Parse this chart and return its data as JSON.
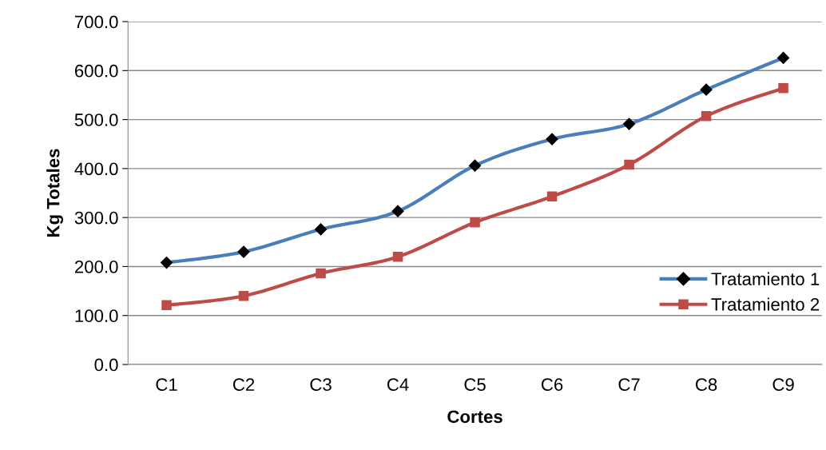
{
  "chart_data": {
    "type": "line",
    "xlabel": "Cortes",
    "ylabel": "Kg Totales",
    "categories": [
      "C1",
      "C2",
      "C3",
      "C4",
      "C5",
      "C6",
      "C7",
      "C8",
      "C9"
    ],
    "series": [
      {
        "name": "Tratamiento 1",
        "color": "#4a7ebb",
        "marker": "diamond",
        "values": [
          208,
          230,
          276,
          313,
          406,
          460,
          491,
          561,
          626
        ]
      },
      {
        "name": "Tratamiento 2",
        "color": "#be4b48",
        "marker": "square",
        "values": [
          121,
          140,
          186,
          220,
          290,
          343,
          408,
          507,
          564
        ]
      }
    ],
    "ylim": [
      0,
      700
    ],
    "yticks": [
      {
        "value": 0,
        "label": "0.0"
      },
      {
        "value": 100,
        "label": "100.0"
      },
      {
        "value": 200,
        "label": "200.0"
      },
      {
        "value": 300,
        "label": "300.0"
      },
      {
        "value": 400,
        "label": "400.0"
      },
      {
        "value": 500,
        "label": "500.0"
      },
      {
        "value": 600,
        "label": "600.0"
      },
      {
        "value": 700,
        "label": "700.0"
      }
    ],
    "grid": "y",
    "legend": "bottom right"
  }
}
